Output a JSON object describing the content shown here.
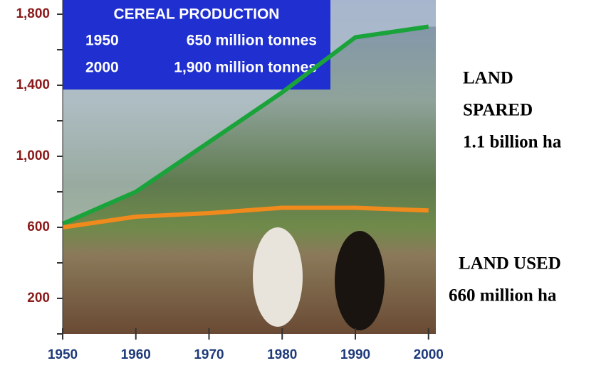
{
  "chart_data": {
    "type": "line",
    "production_box": {
      "title": "CEREAL PRODUCTION",
      "rows": [
        [
          "1950",
          "650 million tonnes"
        ],
        [
          "2000",
          "1,900 million tonnes"
        ]
      ]
    },
    "annotations": {
      "spared": [
        "LAND",
        "SPARED",
        "1.1 billion ha"
      ],
      "used": [
        "LAND USED",
        "660 million ha"
      ]
    },
    "x": [
      1950,
      1960,
      1970,
      1980,
      1990,
      2000
    ],
    "series": [
      {
        "color": "#1aa33a",
        "values": [
          620,
          800,
          1080,
          1360,
          1670,
          1730
        ]
      },
      {
        "color": "#f08a1c",
        "values": [
          600,
          660,
          680,
          710,
          710,
          695
        ]
      }
    ],
    "xlim": [
      1950,
      2001
    ],
    "xticks": [
      1950,
      1960,
      1970,
      1980,
      1990,
      2000
    ],
    "ylim": [
      0,
      1880
    ],
    "yticks": [
      200,
      600,
      {
        "value": 1000,
        "label": "1,000"
      },
      {
        "value": 1400,
        "label": "1,400"
      },
      {
        "value": 1800,
        "label": "1,800"
      }
    ],
    "minor_yticks": [
      0,
      400,
      800,
      1200,
      1600
    ]
  }
}
